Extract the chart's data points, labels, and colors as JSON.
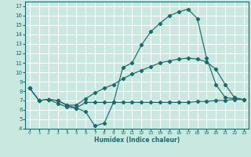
{
  "xlabel": "Humidex (Indice chaleur)",
  "xlim": [
    -0.5,
    23.5
  ],
  "ylim": [
    4,
    17.5
  ],
  "xticks": [
    0,
    1,
    2,
    3,
    4,
    5,
    6,
    7,
    8,
    9,
    10,
    11,
    12,
    13,
    14,
    15,
    16,
    17,
    18,
    19,
    20,
    21,
    22,
    23
  ],
  "yticks": [
    4,
    5,
    6,
    7,
    8,
    9,
    10,
    11,
    12,
    13,
    14,
    15,
    16,
    17
  ],
  "bg_color": "#c8e8e0",
  "grid_color": "#ffffff",
  "line_color": "#1a6b6b",
  "line1_x": [
    0,
    1,
    2,
    3,
    4,
    5,
    6,
    7,
    8,
    9,
    10,
    11,
    12,
    13,
    14,
    15,
    16,
    17,
    18,
    19,
    20,
    21,
    22,
    23
  ],
  "line1_y": [
    8.3,
    7.0,
    7.1,
    7.0,
    6.5,
    6.2,
    5.8,
    4.3,
    4.6,
    6.8,
    10.5,
    11.0,
    12.9,
    14.3,
    15.2,
    16.0,
    16.4,
    16.7,
    15.7,
    11.5,
    8.7,
    7.3,
    7.2,
    7.1
  ],
  "line2_x": [
    0,
    1,
    2,
    3,
    4,
    5,
    6,
    7,
    8,
    9,
    10,
    11,
    12,
    13,
    14,
    15,
    16,
    17,
    18,
    19,
    20,
    21,
    22,
    23
  ],
  "line2_y": [
    8.3,
    7.0,
    7.1,
    6.7,
    6.3,
    6.2,
    6.8,
    6.8,
    6.8,
    6.8,
    6.8,
    6.8,
    6.8,
    6.8,
    6.8,
    6.8,
    6.8,
    6.8,
    6.9,
    6.9,
    7.0,
    7.0,
    7.1,
    7.1
  ],
  "line3_x": [
    0,
    1,
    2,
    3,
    4,
    5,
    6,
    7,
    8,
    9,
    10,
    11,
    12,
    13,
    14,
    15,
    16,
    17,
    18,
    19,
    20,
    21,
    22,
    23
  ],
  "line3_y": [
    8.3,
    7.0,
    7.1,
    7.0,
    6.5,
    6.5,
    7.2,
    7.8,
    8.3,
    8.7,
    9.3,
    9.8,
    10.2,
    10.6,
    11.0,
    11.2,
    11.4,
    11.5,
    11.4,
    11.1,
    10.3,
    8.7,
    7.3,
    7.1
  ]
}
